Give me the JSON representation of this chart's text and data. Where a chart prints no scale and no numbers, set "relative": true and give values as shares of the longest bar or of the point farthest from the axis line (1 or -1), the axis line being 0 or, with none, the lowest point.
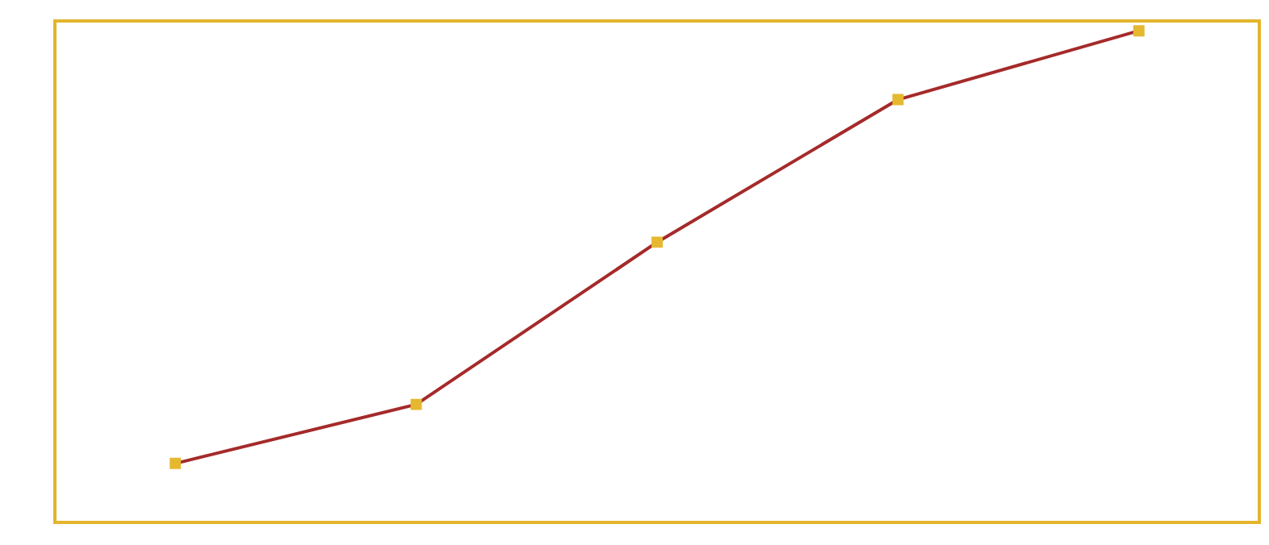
{
  "chart_data": {
    "type": "line",
    "relative": true,
    "categories": [
      null,
      null,
      null,
      null,
      null
    ],
    "series": [
      {
        "color": "#a52a2a",
        "values": [
          0.12,
          0.24,
          0.57,
          0.86,
          1
        ]
      }
    ],
    "marker": "square",
    "legend": false
  }
}
